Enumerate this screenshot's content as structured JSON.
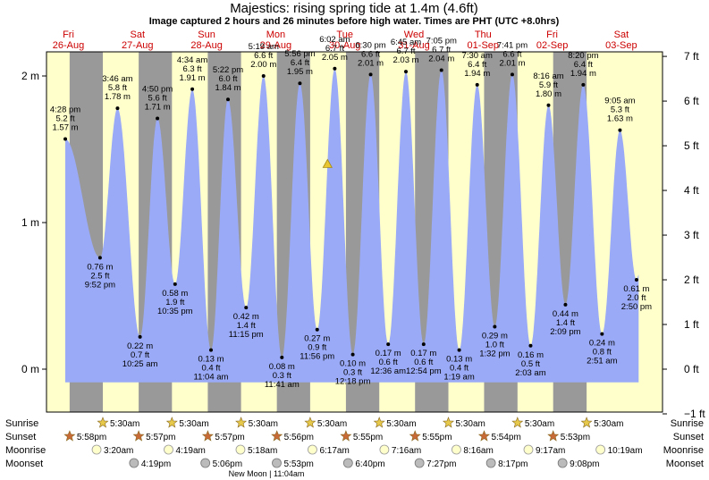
{
  "chart_data": {
    "type": "area",
    "title": "Majestics: rising  spring tide at 1.4m (4.6ft)",
    "subtitle": "Image captured 2 hours and 26 minutes before high water. Times are PHT (UTC +8.0hrs)",
    "days": [
      {
        "dow": "Fri",
        "date": "26-Aug"
      },
      {
        "dow": "Sat",
        "date": "27-Aug"
      },
      {
        "dow": "Sun",
        "date": "28-Aug"
      },
      {
        "dow": "Mon",
        "date": "29-Aug"
      },
      {
        "dow": "Tue",
        "date": "30-Aug"
      },
      {
        "dow": "Wed",
        "date": "31-Aug"
      },
      {
        "dow": "Thu",
        "date": "01-Sep"
      },
      {
        "dow": "Fri",
        "date": "02-Sep"
      },
      {
        "dow": "Sat",
        "date": "03-Sep"
      }
    ],
    "y_left": {
      "unit_suffix": " m",
      "ticks": [
        0,
        1,
        2
      ],
      "labels": [
        "0 m",
        "1 m",
        "2 m"
      ],
      "range": [
        -0.3,
        2.4
      ]
    },
    "y_right": {
      "unit_suffix": " ft",
      "ticks": [
        -1,
        0,
        1,
        2,
        3,
        4,
        5,
        6,
        7
      ],
      "labels": [
        "−1 ft",
        "0 ft",
        "1 ft",
        "2 ft",
        "3 ft",
        "4 ft",
        "5 ft",
        "6 ft",
        "7 ft"
      ]
    },
    "tides": [
      {
        "t": 0.6861,
        "m": 1.57,
        "ft": "5.2 ft",
        "time": "4:28 pm",
        "type": "high"
      },
      {
        "t": 1.1889,
        "m": 0.76,
        "ft": "2.5 ft",
        "time": "9:52 pm",
        "type": "low"
      },
      {
        "t": 1.4417,
        "m": 1.78,
        "ft": "5.8 ft",
        "time": "3:46 am",
        "type": "high"
      },
      {
        "t": 1.7674,
        "m": 0.22,
        "ft": "0.7 ft",
        "time": "10:25 am",
        "type": "low"
      },
      {
        "t": 2.0194,
        "m": 1.71,
        "ft": "5.6 ft",
        "time": "4:50 pm",
        "type": "high"
      },
      {
        "t": 2.2743,
        "m": 0.58,
        "ft": "1.9 ft",
        "time": "10:35 pm",
        "type": "low"
      },
      {
        "t": 2.5236,
        "m": 1.91,
        "ft": "6.3 ft",
        "time": "4:34 am",
        "type": "high"
      },
      {
        "t": 2.7944,
        "m": 0.13,
        "ft": "0.4 ft",
        "time": "11:04 am",
        "type": "low"
      },
      {
        "t": 3.0403,
        "m": 1.84,
        "ft": "6.0 ft",
        "time": "5:22 pm",
        "type": "high"
      },
      {
        "t": 3.3021,
        "m": 0.42,
        "ft": "1.4 ft",
        "time": "11:15 pm",
        "type": "low"
      },
      {
        "t": 3.5542,
        "m": 2.0,
        "ft": "6.6 ft",
        "time": "5:19 am",
        "type": "high"
      },
      {
        "t": 3.8201,
        "m": 0.08,
        "ft": "0.3 ft",
        "time": "11:41 am",
        "type": "low"
      },
      {
        "t": 4.0806,
        "m": 1.95,
        "ft": "6.4 ft",
        "time": "5:56 pm",
        "type": "high"
      },
      {
        "t": 4.3306,
        "m": 0.27,
        "ft": "0.9 ft",
        "time": "11:56 pm",
        "type": "low"
      },
      {
        "t": 4.5847,
        "m": 2.05,
        "ft": "6.7 ft",
        "time": "6:02 am",
        "type": "high"
      },
      {
        "t": 4.8458,
        "m": 0.1,
        "ft": "0.3 ft",
        "time": "12:18 pm",
        "type": "low"
      },
      {
        "t": 5.1042,
        "m": 2.01,
        "ft": "6.6 ft",
        "time": "6:30 pm",
        "type": "high"
      },
      {
        "t": 5.3583,
        "m": 0.17,
        "ft": "0.6 ft",
        "time": "12:36 am",
        "type": "low"
      },
      {
        "t": 5.6146,
        "m": 2.03,
        "ft": "6.7 ft",
        "time": "6:45 am",
        "type": "high"
      },
      {
        "t": 5.8708,
        "m": 0.17,
        "ft": "0.6 ft",
        "time": "12:54 pm",
        "type": "low"
      },
      {
        "t": 6.1285,
        "m": 2.04,
        "ft": "6.7 ft",
        "time": "7:05 pm",
        "type": "high"
      },
      {
        "t": 6.3854,
        "m": 0.13,
        "ft": "0.4 ft",
        "time": "1:19 am",
        "type": "low"
      },
      {
        "t": 6.6458,
        "m": 1.94,
        "ft": "6.4 ft",
        "time": "7:30 am",
        "type": "high"
      },
      {
        "t": 6.9,
        "m": 0.29,
        "ft": "1.0 ft",
        "time": "1:32 pm",
        "type": "low"
      },
      {
        "t": 7.1535,
        "m": 2.01,
        "ft": "6.6 ft",
        "time": "7:41 pm",
        "type": "high"
      },
      {
        "t": 7.4188,
        "m": 0.16,
        "ft": "0.5 ft",
        "time": "2:03 am",
        "type": "low"
      },
      {
        "t": 7.6778,
        "m": 1.8,
        "ft": "5.9 ft",
        "time": "8:16 am",
        "type": "high"
      },
      {
        "t": 7.9229,
        "m": 0.44,
        "ft": "1.4 ft",
        "time": "2:09 pm",
        "type": "low"
      },
      {
        "t": 8.1806,
        "m": 1.94,
        "ft": "6.4 ft",
        "time": "8:20 pm",
        "type": "high"
      },
      {
        "t": 8.4521,
        "m": 0.24,
        "ft": "0.8 ft",
        "time": "2:51 am",
        "type": "low"
      },
      {
        "t": 8.7118,
        "m": 1.63,
        "ft": "5.3 ft",
        "time": "9:05 am",
        "type": "high"
      },
      {
        "t": 8.9514,
        "m": 0.61,
        "ft": "2.0 ft",
        "time": "2:50 pm",
        "type": "low"
      }
    ],
    "current": {
      "t": 4.48,
      "m": 1.4
    },
    "sunrise": "5:30am",
    "sunset": [
      "5:58pm",
      "5:57pm",
      "5:57pm",
      "5:56pm",
      "5:55pm",
      "5:55pm",
      "5:54pm",
      "5:53pm"
    ],
    "moonrise": [
      "3:20am",
      "4:19am",
      "5:18am",
      "6:17am",
      "7:16am",
      "8:16am",
      "9:17am",
      "10:19am"
    ],
    "moonset": [
      "4:19pm",
      "5:06pm",
      "5:53pm",
      "6:40pm",
      "7:27pm",
      "8:17pm",
      "9:08pm"
    ],
    "row_labels": {
      "sunrise": "Sunrise",
      "sunset": "Sunset",
      "moonrise": "Moonrise",
      "moonset": "Moonset"
    },
    "moon_phase": "New Moon | 11:04am",
    "colors": {
      "day": "#ffffcc",
      "night": "#999999",
      "water": "#9aaaf6",
      "outside": "#ffffff",
      "date_text": "#cc0000",
      "sun": "#e6c84a",
      "sunset": "#c86a38",
      "moonrise": "#ffffcc",
      "moonset": "#bbbbbb"
    }
  }
}
